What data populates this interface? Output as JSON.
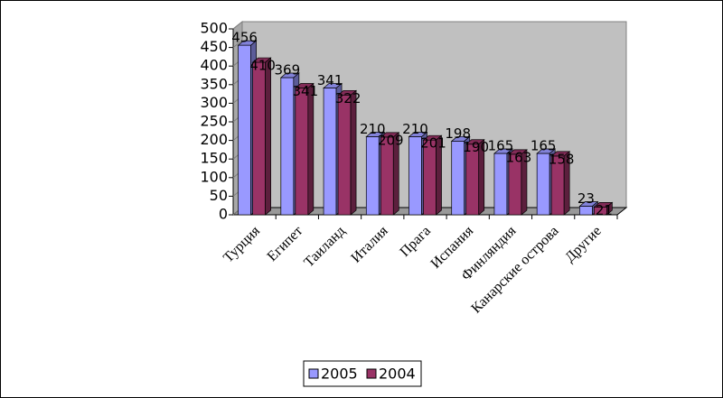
{
  "chart_data": {
    "type": "bar3d",
    "categories": [
      "Турция",
      "Египет",
      "Таиланд",
      "Италия",
      "Прага",
      "Испания",
      "Финляндия",
      "Канарские острова",
      "Другие"
    ],
    "series": [
      {
        "name": "2005",
        "color": "#9999ff",
        "values": [
          456,
          369,
          341,
          210,
          210,
          198,
          165,
          165,
          23
        ]
      },
      {
        "name": "2004",
        "color": "#993366",
        "values": [
          410,
          341,
          322,
          209,
          201,
          190,
          163,
          158,
          21
        ]
      }
    ],
    "ylim": [
      0,
      500
    ],
    "yticks": [
      0,
      50,
      100,
      150,
      200,
      250,
      300,
      350,
      400,
      450,
      500
    ],
    "wall_color": "#c0c0c0",
    "legend": "bottom"
  }
}
